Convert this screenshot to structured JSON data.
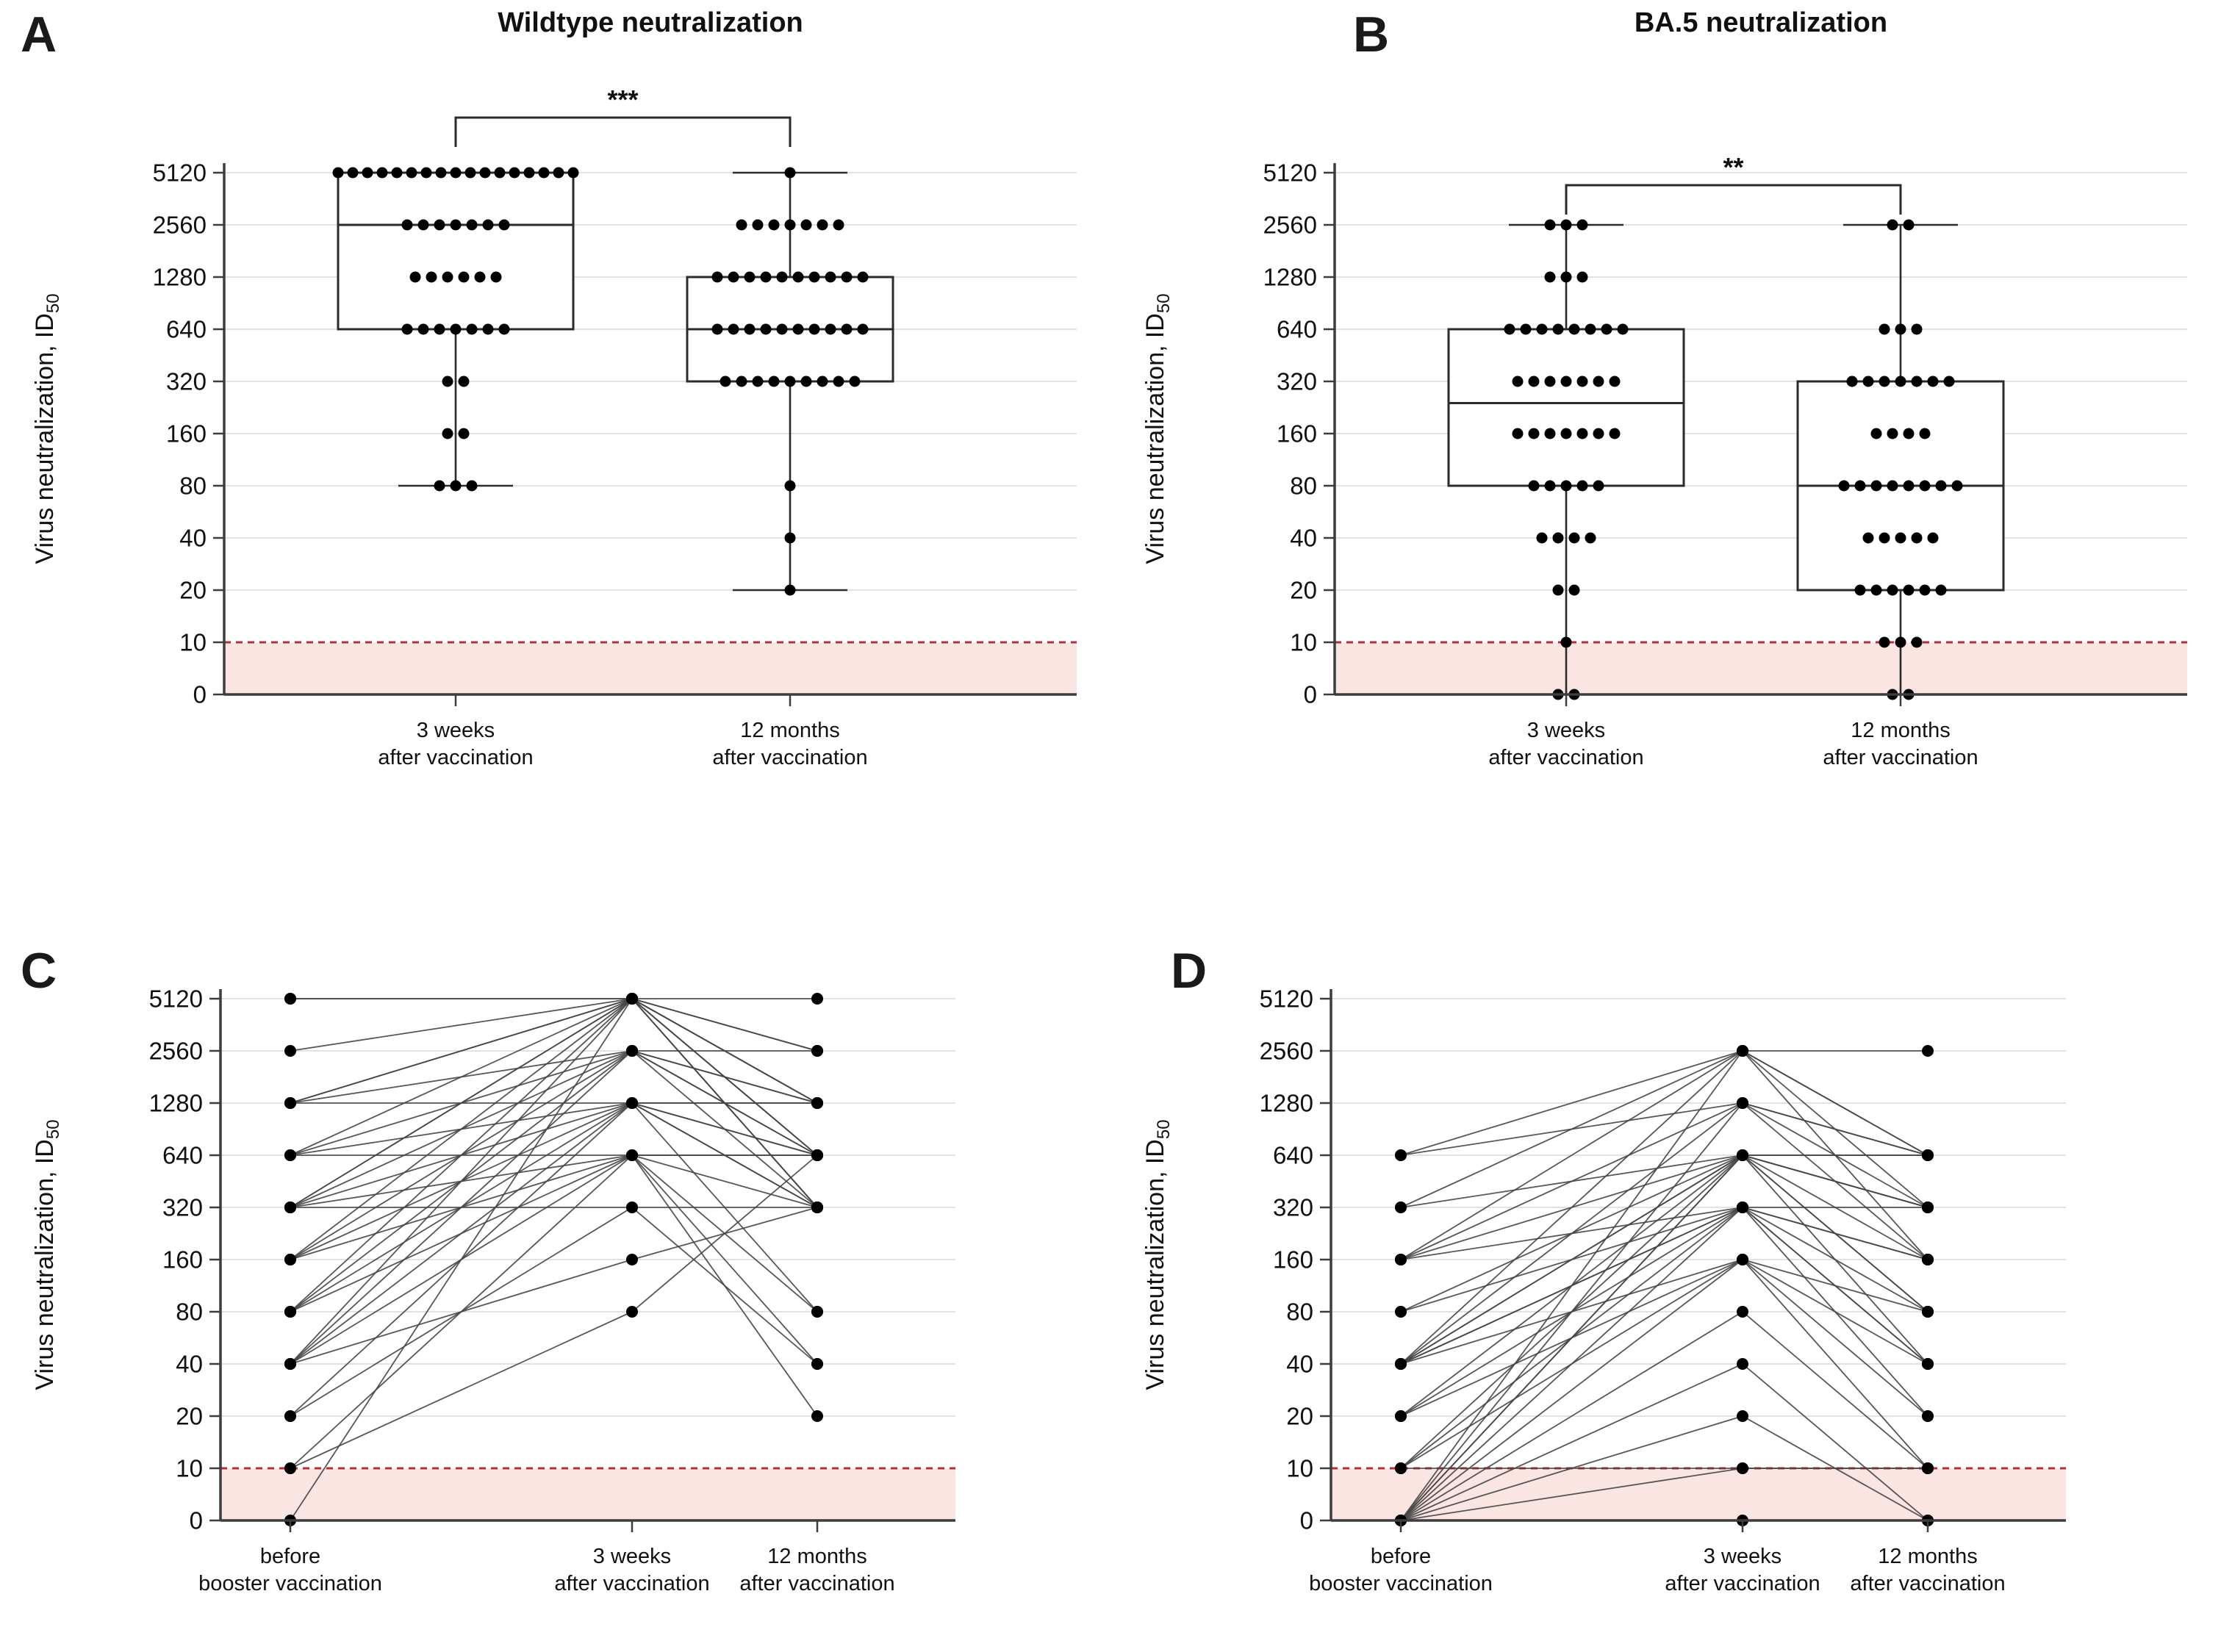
{
  "figure": {
    "y_axis_label": "Virus neutralization, ID",
    "y_axis_label_subscript": "50",
    "y_ticks": [
      5120,
      2560,
      1280,
      640,
      320,
      160,
      80,
      40,
      20,
      10,
      0
    ],
    "detection_cutoff": 10,
    "colors": {
      "dot": "#000000",
      "box_stroke": "#2b2b2b",
      "grid": "#d9d9d9",
      "axis": "#3d3d3d",
      "cutoff_line": "#b03137",
      "cutoff_fill": "#fbe5e2",
      "pair_line": "#454545",
      "text": "#111111"
    }
  },
  "chart_data": [
    {
      "type": "box",
      "panel_letter": "A",
      "title": "Wildtype neutralization",
      "significance": "***",
      "categories": [
        [
          "3 weeks",
          "after vaccination"
        ],
        [
          "12 months",
          "after vaccination"
        ]
      ],
      "groups": [
        {
          "box": {
            "q1": 640,
            "median": 2560,
            "q3": 5120,
            "whisker_low": 80,
            "whisker_high": 5120
          },
          "points": [
            {
              "value": 5120,
              "count": 17
            },
            {
              "value": 2560,
              "count": 7
            },
            {
              "value": 1280,
              "count": 6
            },
            {
              "value": 640,
              "count": 7
            },
            {
              "value": 320,
              "count": 2
            },
            {
              "value": 160,
              "count": 2
            },
            {
              "value": 80,
              "count": 3
            }
          ]
        },
        {
          "box": {
            "q1": 320,
            "median": 640,
            "q3": 1280,
            "whisker_low": 20,
            "whisker_high": 5120
          },
          "points": [
            {
              "value": 5120,
              "count": 1
            },
            {
              "value": 2560,
              "count": 7
            },
            {
              "value": 1280,
              "count": 10
            },
            {
              "value": 640,
              "count": 10
            },
            {
              "value": 320,
              "count": 9
            },
            {
              "value": 80,
              "count": 1
            },
            {
              "value": 40,
              "count": 1
            },
            {
              "value": 20,
              "count": 1
            }
          ]
        }
      ]
    },
    {
      "type": "box",
      "panel_letter": "B",
      "title": "BA.5 neutralization",
      "significance": "**",
      "categories": [
        [
          "3 weeks",
          "after vaccination"
        ],
        [
          "12 months",
          "after vaccination"
        ]
      ],
      "groups": [
        {
          "box": {
            "q1": 80,
            "median": 240,
            "q3": 640,
            "whisker_low": 0,
            "whisker_high": 2560
          },
          "points": [
            {
              "value": 2560,
              "count": 3
            },
            {
              "value": 1280,
              "count": 3
            },
            {
              "value": 640,
              "count": 8
            },
            {
              "value": 320,
              "count": 7
            },
            {
              "value": 160,
              "count": 7
            },
            {
              "value": 80,
              "count": 5
            },
            {
              "value": 40,
              "count": 4
            },
            {
              "value": 20,
              "count": 2
            },
            {
              "value": 10,
              "count": 1
            },
            {
              "value": 0,
              "count": 2
            }
          ]
        },
        {
          "box": {
            "q1": 20,
            "median": 80,
            "q3": 320,
            "whisker_low": 0,
            "whisker_high": 2560
          },
          "points": [
            {
              "value": 2560,
              "count": 2
            },
            {
              "value": 640,
              "count": 3
            },
            {
              "value": 320,
              "count": 7
            },
            {
              "value": 160,
              "count": 4
            },
            {
              "value": 80,
              "count": 8
            },
            {
              "value": 40,
              "count": 5
            },
            {
              "value": 20,
              "count": 6
            },
            {
              "value": 10,
              "count": 3
            },
            {
              "value": 0,
              "count": 2
            }
          ]
        }
      ]
    },
    {
      "type": "paired-lines",
      "panel_letter": "C",
      "title": "",
      "categories": [
        [
          "before",
          "booster vaccination"
        ],
        [
          "3 weeks",
          "after vaccination"
        ],
        [
          "12 months",
          "after vaccination"
        ]
      ],
      "trajectories": [
        [
          5120,
          5120,
          5120
        ],
        [
          5120,
          5120,
          2560
        ],
        [
          2560,
          5120,
          1280
        ],
        [
          1280,
          5120,
          2560
        ],
        [
          1280,
          5120,
          640
        ],
        [
          1280,
          2560,
          1280
        ],
        [
          1280,
          1280,
          1280
        ],
        [
          640,
          5120,
          1280
        ],
        [
          640,
          2560,
          640
        ],
        [
          640,
          1280,
          1280
        ],
        [
          640,
          640,
          640
        ],
        [
          320,
          5120,
          640
        ],
        [
          320,
          5120,
          320
        ],
        [
          320,
          2560,
          2560
        ],
        [
          320,
          1280,
          320
        ],
        [
          320,
          640,
          640
        ],
        [
          320,
          320,
          320
        ],
        [
          160,
          5120,
          1280
        ],
        [
          160,
          2560,
          320
        ],
        [
          160,
          1280,
          640
        ],
        [
          160,
          640,
          80
        ],
        [
          80,
          5120,
          640
        ],
        [
          80,
          2560,
          1280
        ],
        [
          80,
          1280,
          320
        ],
        [
          80,
          640,
          320
        ],
        [
          40,
          5120,
          320
        ],
        [
          40,
          2560,
          640
        ],
        [
          40,
          1280,
          80
        ],
        [
          40,
          640,
          40
        ],
        [
          40,
          160,
          320
        ],
        [
          20,
          1280,
          640
        ],
        [
          20,
          320,
          40
        ],
        [
          10,
          640,
          20
        ],
        [
          10,
          80,
          640
        ],
        [
          0,
          5120,
          320
        ]
      ]
    },
    {
      "type": "paired-lines",
      "panel_letter": "D",
      "title": "",
      "categories": [
        [
          "before",
          "booster vaccination"
        ],
        [
          "3 weeks",
          "after vaccination"
        ],
        [
          "12 months",
          "after vaccination"
        ]
      ],
      "trajectories": [
        [
          640,
          2560,
          2560
        ],
        [
          640,
          1280,
          640
        ],
        [
          320,
          2560,
          640
        ],
        [
          320,
          640,
          320
        ],
        [
          160,
          2560,
          160
        ],
        [
          160,
          1280,
          320
        ],
        [
          160,
          640,
          640
        ],
        [
          160,
          320,
          80
        ],
        [
          80,
          640,
          320
        ],
        [
          80,
          320,
          160
        ],
        [
          40,
          2560,
          640
        ],
        [
          40,
          1280,
          160
        ],
        [
          40,
          640,
          320
        ],
        [
          40,
          640,
          80
        ],
        [
          40,
          320,
          160
        ],
        [
          40,
          320,
          40
        ],
        [
          40,
          160,
          40
        ],
        [
          20,
          640,
          80
        ],
        [
          20,
          320,
          320
        ],
        [
          20,
          160,
          20
        ],
        [
          10,
          640,
          160
        ],
        [
          10,
          320,
          40
        ],
        [
          10,
          160,
          80
        ],
        [
          10,
          10,
          10
        ],
        [
          0,
          2560,
          320
        ],
        [
          0,
          1280,
          640
        ],
        [
          0,
          640,
          640
        ],
        [
          0,
          640,
          40
        ],
        [
          0,
          320,
          20
        ],
        [
          0,
          160,
          10
        ],
        [
          0,
          80,
          10
        ],
        [
          0,
          40,
          0
        ],
        [
          0,
          20,
          0
        ],
        [
          0,
          10,
          10
        ],
        [
          0,
          0,
          0
        ]
      ]
    }
  ]
}
